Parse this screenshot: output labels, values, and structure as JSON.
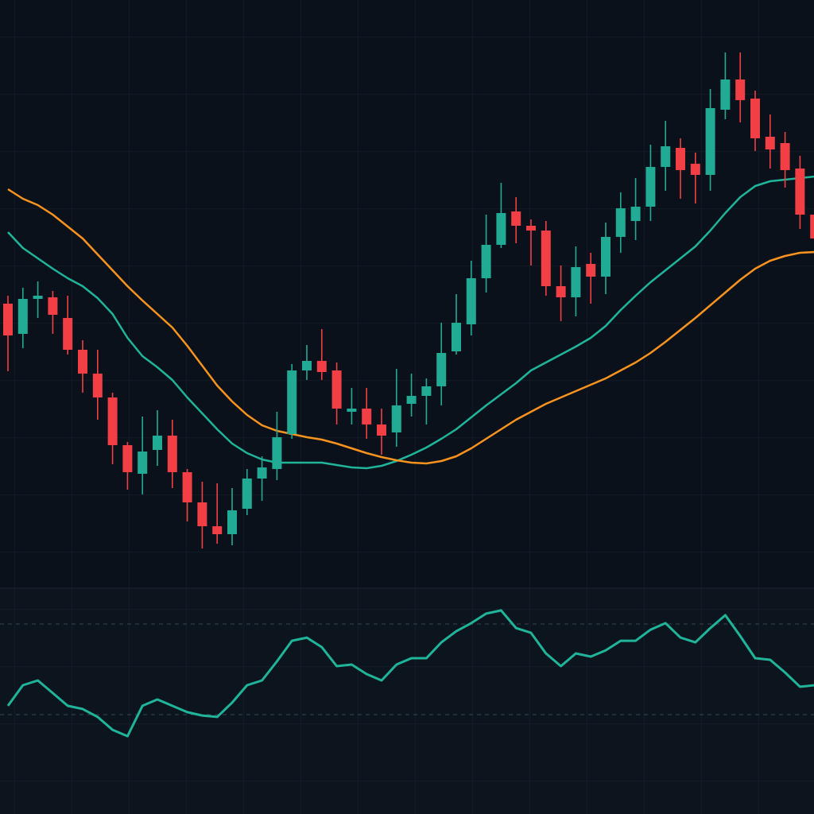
{
  "chart_data": [
    {
      "type": "candlestick",
      "up_color": "#22ab94",
      "down_color": "#f23f45",
      "ylim": [
        0,
        80
      ],
      "open": [
        41.8,
        38.0,
        42.4,
        42.6,
        40.0,
        36.0,
        33.0,
        30.0,
        24.0,
        20.4,
        23.4,
        25.2,
        20.6,
        16.8,
        13.8,
        12.8,
        16.0,
        19.8,
        21.0,
        25.4,
        33.4,
        34.6,
        33.4,
        28.2,
        28.6,
        26.6,
        25.6,
        29.2,
        30.2,
        31.4,
        35.8,
        39.2,
        45.0,
        49.2,
        53.4,
        51.6,
        51.0,
        44.0,
        42.6,
        46.8,
        45.2,
        50.2,
        52.2,
        54.0,
        59.0,
        61.4,
        59.4,
        58.0,
        66.2,
        70.0,
        67.6,
        62.8,
        62.0,
        58.8,
        53.0
      ],
      "high": [
        42.8,
        43.8,
        44.6,
        43.4,
        42.8,
        37.2,
        36.0,
        30.6,
        24.4,
        27.6,
        28.4,
        27.2,
        21.0,
        19.4,
        19.2,
        18.6,
        21.0,
        22.6,
        28.2,
        34.2,
        36.6,
        38.6,
        34.4,
        31.2,
        31.2,
        28.6,
        33.6,
        33.0,
        32.4,
        39.4,
        43.0,
        47.2,
        53.0,
        57.0,
        55.2,
        52.4,
        52.2,
        46.6,
        49.0,
        48.2,
        52.0,
        55.8,
        57.6,
        61.8,
        64.8,
        62.6,
        60.8,
        68.8,
        73.4,
        73.4,
        68.6,
        65.6,
        63.4,
        60.4,
        54.0
      ],
      "low": [
        33.3,
        36.2,
        40.0,
        38.0,
        35.4,
        30.6,
        27.2,
        21.6,
        18.4,
        17.8,
        21.4,
        18.6,
        14.4,
        11.0,
        11.6,
        11.4,
        15.2,
        17.0,
        19.6,
        24.8,
        32.2,
        32.2,
        26.6,
        26.6,
        24.8,
        22.8,
        23.8,
        27.6,
        26.6,
        29.0,
        35.4,
        37.8,
        43.2,
        48.8,
        49.4,
        46.6,
        42.8,
        39.6,
        40.2,
        41.8,
        43.0,
        48.2,
        49.8,
        52.2,
        56.0,
        55.0,
        54.4,
        56.0,
        65.0,
        64.6,
        61.0,
        58.8,
        56.4,
        51.2,
        48.0
      ],
      "close": [
        37.8,
        42.4,
        42.8,
        40.4,
        36.0,
        33.0,
        30.0,
        24.0,
        20.6,
        23.2,
        25.2,
        20.6,
        16.8,
        13.8,
        12.8,
        15.8,
        19.8,
        21.2,
        25.0,
        33.4,
        34.6,
        33.2,
        28.6,
        28.6,
        26.6,
        25.2,
        29.0,
        30.2,
        31.4,
        35.6,
        39.4,
        45.0,
        49.2,
        53.2,
        51.6,
        51.0,
        44.0,
        42.6,
        46.4,
        45.2,
        50.2,
        53.8,
        54.0,
        59.0,
        61.6,
        58.6,
        58.0,
        66.4,
        70.0,
        67.4,
        62.6,
        61.2,
        58.6,
        53.0,
        50.0
      ],
      "series": [
        {
          "color": "#20b59a",
          "values": [
            50.8,
            48.8,
            47.5,
            46.2,
            45.0,
            44.0,
            42.5,
            40.5,
            37.5,
            35.2,
            33.8,
            32.2,
            30.0,
            28.0,
            26.0,
            24.2,
            23.0,
            22.2,
            21.8,
            21.8,
            21.8,
            21.8,
            21.5,
            21.2,
            21.1,
            21.4,
            22.0,
            22.8,
            23.7,
            24.8,
            26.0,
            27.5,
            29.0,
            30.4,
            31.8,
            33.4,
            34.4,
            35.4,
            36.4,
            37.5,
            39.0,
            41.0,
            42.8,
            44.5,
            46.0,
            47.5,
            49.0,
            51.0,
            53.2,
            55.2,
            56.6,
            57.2,
            57.4,
            57.6,
            57.8
          ]
        },
        {
          "color": "#f7931e",
          "values": [
            56.2,
            55.0,
            54.2,
            53.0,
            51.5,
            50.0,
            48.0,
            46.0,
            44.0,
            42.2,
            40.5,
            38.8,
            36.5,
            34.0,
            31.5,
            29.5,
            27.8,
            26.5,
            25.8,
            25.4,
            25.0,
            24.7,
            24.2,
            23.6,
            23.0,
            22.5,
            22.1,
            21.8,
            21.7,
            22.0,
            22.6,
            23.6,
            24.8,
            26.0,
            27.2,
            28.2,
            29.2,
            30.0,
            30.8,
            31.6,
            32.4,
            33.4,
            34.4,
            35.6,
            37.0,
            38.5,
            40.0,
            41.6,
            43.2,
            44.8,
            46.2,
            47.2,
            47.8,
            48.2,
            48.3
          ]
        }
      ]
    },
    {
      "type": "line",
      "ylim": [
        0,
        100
      ],
      "levels": [
        30,
        70
      ],
      "color": "#20b59a",
      "values": [
        33.9,
        43.0,
        45.1,
        39.5,
        33.9,
        32.5,
        29.0,
        23.3,
        20.5,
        33.9,
        36.7,
        33.9,
        31.1,
        29.6,
        29.0,
        35.3,
        43.0,
        45.1,
        53.5,
        62.6,
        64.0,
        59.8,
        51.4,
        52.1,
        47.9,
        45.1,
        52.1,
        54.9,
        54.9,
        61.9,
        66.8,
        70.4,
        74.6,
        76.0,
        68.2,
        66.1,
        57.0,
        51.4,
        57.0,
        55.6,
        58.4,
        62.6,
        62.6,
        67.5,
        70.4,
        64.0,
        61.9,
        68.2,
        73.9,
        64.7,
        54.9,
        54.2,
        48.6,
        42.3,
        43.0
      ]
    }
  ]
}
